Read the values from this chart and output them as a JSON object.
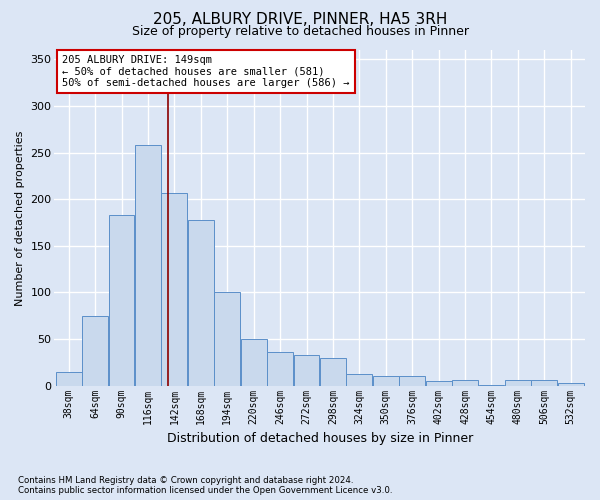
{
  "title1": "205, ALBURY DRIVE, PINNER, HA5 3RH",
  "title2": "Size of property relative to detached houses in Pinner",
  "xlabel": "Distribution of detached houses by size in Pinner",
  "ylabel": "Number of detached properties",
  "footnote1": "Contains HM Land Registry data © Crown copyright and database right 2024.",
  "footnote2": "Contains public sector information licensed under the Open Government Licence v3.0.",
  "annotation_line1": "205 ALBURY DRIVE: 149sqm",
  "annotation_line2": "← 50% of detached houses are smaller (581)",
  "annotation_line3": "50% of semi-detached houses are larger (586) →",
  "bar_color": "#c9d9ed",
  "bar_edge_color": "#5b8fc9",
  "vline_color": "#8b0000",
  "vline_x": 149,
  "bin_edges": [
    38,
    64,
    90,
    116,
    142,
    168,
    194,
    220,
    246,
    272,
    298,
    324,
    350,
    376,
    402,
    428,
    454,
    480,
    506,
    532,
    558
  ],
  "bar_heights": [
    15,
    75,
    183,
    258,
    207,
    178,
    100,
    50,
    36,
    33,
    30,
    12,
    10,
    10,
    5,
    6,
    1,
    6,
    6,
    3
  ],
  "ylim": [
    0,
    360
  ],
  "yticks": [
    0,
    50,
    100,
    150,
    200,
    250,
    300,
    350
  ],
  "background_color": "#dce6f5",
  "plot_bg_color": "#dce6f5",
  "grid_color": "#ffffff",
  "annotation_box_color": "#ffffff",
  "annotation_box_edge": "#cc0000",
  "title1_fontsize": 11,
  "title2_fontsize": 9,
  "xlabel_fontsize": 9,
  "ylabel_fontsize": 8,
  "tick_fontsize": 7,
  "ann_fontsize": 7.5
}
